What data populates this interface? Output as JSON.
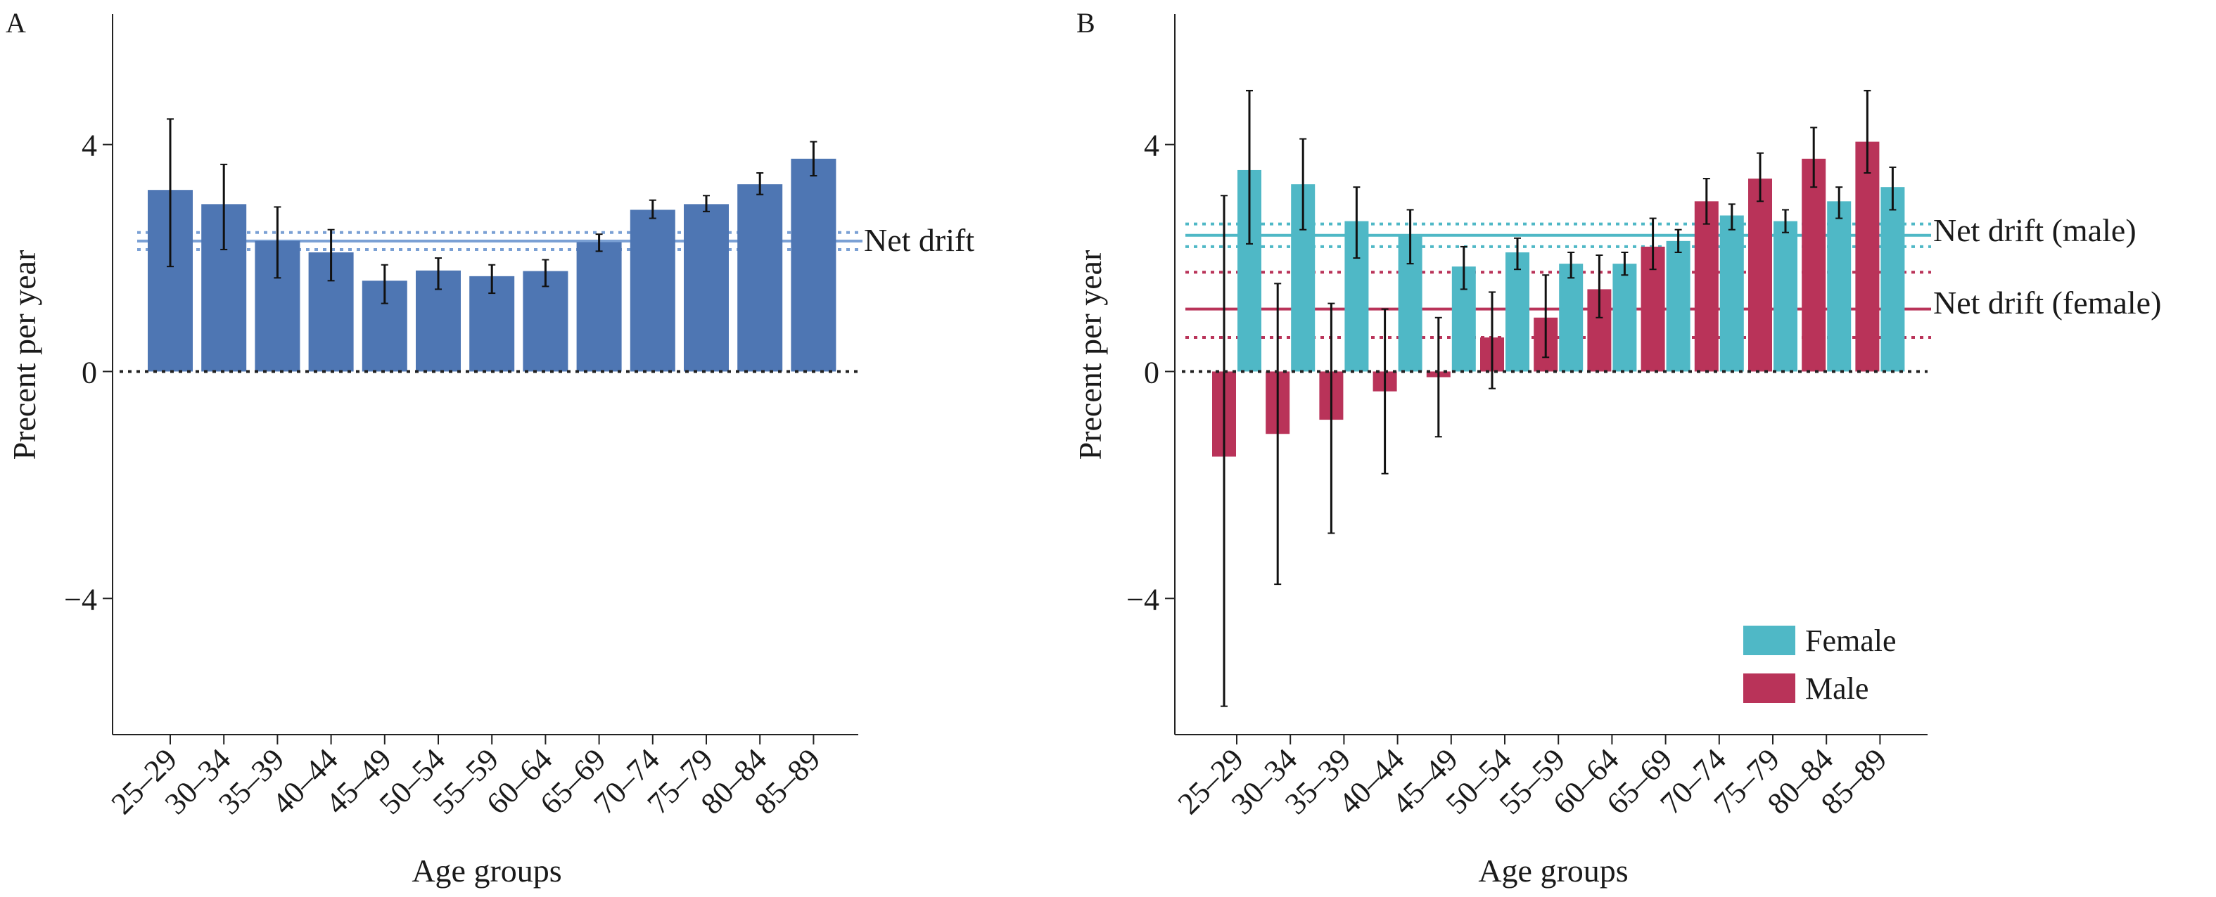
{
  "colors": {
    "panel_a_bar": "#4e76b3",
    "drift_a_line": "#7aa0d4",
    "female": "#4fb8c6",
    "male": "#b93359",
    "error_bar": "#111111",
    "zero_line": "#222222",
    "axis": "#222222"
  },
  "chart_data": [
    {
      "type": "bar",
      "panel_label": "A",
      "categories": [
        "25–29",
        "30–34",
        "35–39",
        "40–44",
        "45–49",
        "50–54",
        "55–59",
        "60–64",
        "65–69",
        "70–74",
        "75–79",
        "80–84",
        "85–89"
      ],
      "series": [
        {
          "values": [
            3.2,
            2.95,
            2.3,
            2.1,
            1.6,
            1.78,
            1.68,
            1.77,
            2.28,
            2.85,
            2.95,
            3.3,
            3.75
          ],
          "lower": [
            1.85,
            2.15,
            1.65,
            1.6,
            1.2,
            1.45,
            1.38,
            1.5,
            2.12,
            2.7,
            2.82,
            3.12,
            3.45
          ],
          "upper": [
            4.45,
            3.65,
            2.9,
            2.5,
            1.88,
            2.0,
            1.88,
            1.97,
            2.42,
            3.02,
            3.1,
            3.5,
            4.05
          ]
        }
      ],
      "net_drift": {
        "label": "Net drift",
        "value": 2.3,
        "lower": 2.15,
        "upper": 2.45
      },
      "yticks": [
        -4,
        0,
        4
      ],
      "ytick_labels": [
        "−4",
        "0",
        "4"
      ],
      "ylim": [
        -6.4,
        6.3
      ],
      "xlabel": "Age groups",
      "ylabel": "Precent per year"
    },
    {
      "type": "bar",
      "panel_label": "B",
      "categories": [
        "25–29",
        "30–34",
        "35–39",
        "40–44",
        "45–49",
        "50–54",
        "55–59",
        "60–64",
        "65–69",
        "70–74",
        "75–79",
        "80–84",
        "85–89"
      ],
      "series": [
        {
          "name": "Male",
          "values": [
            -1.5,
            -1.1,
            -0.85,
            -0.35,
            -0.1,
            0.6,
            0.95,
            1.45,
            2.2,
            3.0,
            3.4,
            3.75,
            4.05
          ],
          "lower": [
            -5.9,
            -3.75,
            -2.85,
            -1.8,
            -1.15,
            -0.3,
            0.25,
            0.95,
            1.8,
            2.6,
            3.0,
            3.25,
            3.5
          ],
          "upper": [
            3.1,
            1.55,
            1.2,
            1.1,
            0.95,
            1.4,
            1.7,
            2.05,
            2.7,
            3.4,
            3.85,
            4.3,
            4.95
          ]
        },
        {
          "name": "Female",
          "values": [
            3.55,
            3.3,
            2.65,
            2.4,
            1.85,
            2.1,
            1.9,
            1.9,
            2.3,
            2.75,
            2.65,
            3.0,
            3.25
          ],
          "lower": [
            2.25,
            2.5,
            2.0,
            1.9,
            1.45,
            1.8,
            1.65,
            1.7,
            2.1,
            2.5,
            2.45,
            2.7,
            2.85
          ],
          "upper": [
            4.95,
            4.1,
            3.25,
            2.85,
            2.2,
            2.35,
            2.1,
            2.1,
            2.5,
            2.95,
            2.85,
            3.25,
            3.6
          ]
        }
      ],
      "net_drift_male": {
        "label": "Net drift (male)",
        "value": 2.4,
        "lower": 2.2,
        "upper": 2.6
      },
      "net_drift_female": {
        "label": "Net drift (female)",
        "value": 1.1,
        "lower": 0.6,
        "upper": 1.75
      },
      "yticks": [
        -4,
        0,
        4
      ],
      "ytick_labels": [
        "−4",
        "0",
        "4"
      ],
      "ylim": [
        -6.4,
        6.3
      ],
      "xlabel": "Age groups",
      "ylabel": "Precent per year",
      "legend": {
        "placement": "bottom-right",
        "items": [
          "Female",
          "Male"
        ]
      }
    }
  ]
}
